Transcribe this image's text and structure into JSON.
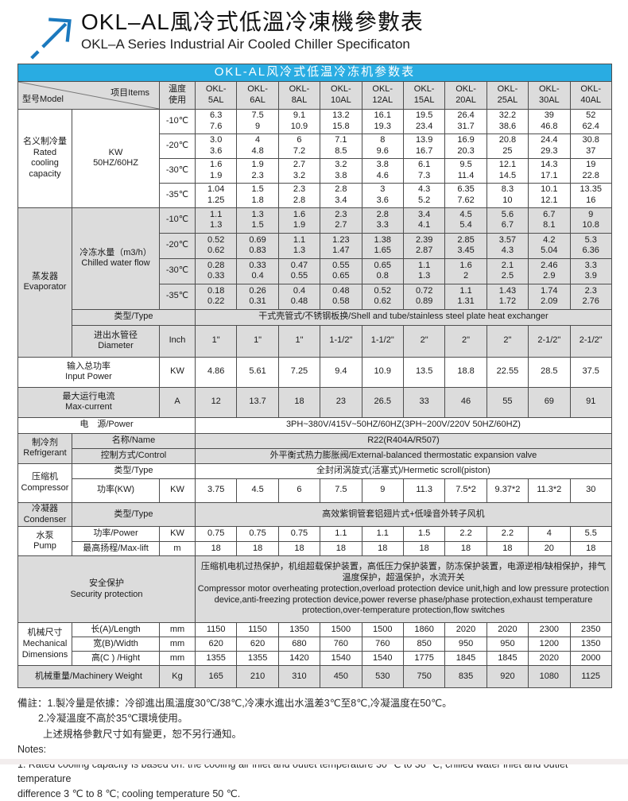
{
  "colors": {
    "accent_cyan": "#29ACE2",
    "logo_blue": "#1B79BE",
    "cell_gray": "#DCDCDC"
  },
  "page": {
    "title_zh": "OKL–AL風冷式低溫冷凍機參數表",
    "title_en": "OKL–A Series Industrial Air Cooled Chiller Specificaton"
  },
  "table": {
    "title": "OKL-AL风冷式低温冷冻机参数表",
    "header": {
      "model_label": "型号Model",
      "items_label": "项目Items",
      "temp_line1": "温度",
      "temp_line2": "使用",
      "models": [
        [
          "OKL-",
          "5AL"
        ],
        [
          "OKL-",
          "6AL"
        ],
        [
          "OKL-",
          "8AL"
        ],
        [
          "OKL-",
          "10AL"
        ],
        [
          "OKL-",
          "12AL"
        ],
        [
          "OKL-",
          "15AL"
        ],
        [
          "OKL-",
          "20AL"
        ],
        [
          "OKL-",
          "25AL"
        ],
        [
          "OKL-",
          "30AL"
        ],
        [
          "OKL-",
          "40AL"
        ]
      ]
    },
    "cooling": {
      "label_zh": "名义制冷量",
      "label_en": "Rated cooling capacity",
      "unit_line1": "KW",
      "unit_line2": "50HZ/60HZ",
      "rows": [
        {
          "temp": "-10℃",
          "values": [
            [
              "6.3",
              "7.6"
            ],
            [
              "7.5",
              "9"
            ],
            [
              "9.1",
              "10.9"
            ],
            [
              "13.2",
              "15.8"
            ],
            [
              "16.1",
              "19.3"
            ],
            [
              "19.5",
              "23.4"
            ],
            [
              "26.4",
              "31.7"
            ],
            [
              "32.2",
              "38.6"
            ],
            [
              "39",
              "46.8"
            ],
            [
              "52",
              "62.4"
            ]
          ]
        },
        {
          "temp": "-20℃",
          "values": [
            [
              "3.0",
              "3.6"
            ],
            [
              "4",
              "4.8"
            ],
            [
              "6",
              "7.2"
            ],
            [
              "7.1",
              "8.5"
            ],
            [
              "8",
              "9.6"
            ],
            [
              "13.9",
              "16.7"
            ],
            [
              "16.9",
              "20.3"
            ],
            [
              "20.8",
              "25"
            ],
            [
              "24.4",
              "29.3"
            ],
            [
              "30.8",
              "37"
            ]
          ]
        },
        {
          "temp": "-30℃",
          "values": [
            [
              "1.6",
              "1.9"
            ],
            [
              "1.9",
              "2.3"
            ],
            [
              "2.7",
              "3.2"
            ],
            [
              "3.2",
              "3.8"
            ],
            [
              "3.8",
              "4.6"
            ],
            [
              "6.1",
              "7.3"
            ],
            [
              "9.5",
              "11.4"
            ],
            [
              "12.1",
              "14.5"
            ],
            [
              "14.3",
              "17.1"
            ],
            [
              "19",
              "22.8"
            ]
          ]
        },
        {
          "temp": "-35℃",
          "values": [
            [
              "1.04",
              "1.25"
            ],
            [
              "1.5",
              "1.8"
            ],
            [
              "2.3",
              "2.8"
            ],
            [
              "2.8",
              "3.4"
            ],
            [
              "3",
              "3.6"
            ],
            [
              "4.3",
              "5.2"
            ],
            [
              "6.35",
              "7.62"
            ],
            [
              "8.3",
              "10"
            ],
            [
              "10.1",
              "12.1"
            ],
            [
              "13.35",
              "16"
            ]
          ]
        }
      ]
    },
    "evaporator": {
      "label_zh": "蒸发器",
      "label_en": "Evaporator",
      "flow_label_zh": "冷冻水量（m3/h）",
      "flow_label_en": "Chilled water flow",
      "flow_rows": [
        {
          "temp": "-10℃",
          "values": [
            [
              "1.1",
              "1.3"
            ],
            [
              "1.3",
              "1.5"
            ],
            [
              "1.6",
              "1.9"
            ],
            [
              "2.3",
              "2.7"
            ],
            [
              "2.8",
              "3.3"
            ],
            [
              "3.4",
              "4.1"
            ],
            [
              "4.5",
              "5.4"
            ],
            [
              "5.6",
              "6.7"
            ],
            [
              "6.7",
              "8.1"
            ],
            [
              "9",
              "10.8"
            ]
          ]
        },
        {
          "temp": "-20℃",
          "values": [
            [
              "0.52",
              "0.62"
            ],
            [
              "0.69",
              "0.83"
            ],
            [
              "1.1",
              "1.3"
            ],
            [
              "1.23",
              "1.47"
            ],
            [
              "1.38",
              "1.65"
            ],
            [
              "2.39",
              "2.87"
            ],
            [
              "2.85",
              "3.45"
            ],
            [
              "3.57",
              "4.3"
            ],
            [
              "4.2",
              "5.04"
            ],
            [
              "5.3",
              "6.36"
            ]
          ]
        },
        {
          "temp": "-30℃",
          "values": [
            [
              "0.28",
              "0.33"
            ],
            [
              "0.33",
              "0.4"
            ],
            [
              "0.47",
              "0.55"
            ],
            [
              "0.55",
              "0.65"
            ],
            [
              "0.65",
              "0.8"
            ],
            [
              "1.1",
              "1.3"
            ],
            [
              "1.6",
              "2"
            ],
            [
              "2.1",
              "2.5"
            ],
            [
              "2.46",
              "2.9"
            ],
            [
              "3.3",
              "3.9"
            ]
          ]
        },
        {
          "temp": "-35℃",
          "values": [
            [
              "0.18",
              "0.22"
            ],
            [
              "0.26",
              "0.31"
            ],
            [
              "0.4",
              "0.48"
            ],
            [
              "0.48",
              "0.58"
            ],
            [
              "0.52",
              "0.62"
            ],
            [
              "0.72",
              "0.89"
            ],
            [
              "1.1",
              "1.31"
            ],
            [
              "1.43",
              "1.72"
            ],
            [
              "1.74",
              "2.09"
            ],
            [
              "2.3",
              "2.76"
            ]
          ]
        }
      ],
      "type_label": "类型/Type",
      "type_value": "干式壳管式/不锈钢板换/Shell and tube/stainless steel plate heat exchanger",
      "diameter": {
        "label_zh": "进出水管径",
        "label_en": "Diameter",
        "unit": "Inch",
        "values": [
          "1\"",
          "1\"",
          "1\"",
          "1-1/2\"",
          "1-1/2\"",
          "2\"",
          "2\"",
          "2\"",
          "2-1/2\"",
          "2-1/2\""
        ]
      }
    },
    "input_power": {
      "label_zh": "输入总功率",
      "label_en": "Input Power",
      "unit": "KW",
      "values": [
        "4.86",
        "5.61",
        "7.25",
        "9.4",
        "10.9",
        "13.5",
        "18.8",
        "22.55",
        "28.5",
        "37.5"
      ]
    },
    "max_current": {
      "label_zh": "最大运行电流",
      "label_en": "Max-current",
      "unit": "A",
      "values": [
        "12",
        "13.7",
        "18",
        "23",
        "26.5",
        "33",
        "46",
        "55",
        "69",
        "91"
      ]
    },
    "power": {
      "label": "电　源/Power",
      "value": "3PH~380V/415V~50HZ/60HZ(3PH~200V/220V  50HZ/60HZ)"
    },
    "refrigerant": {
      "label_zh": "制冷剂",
      "label_en": "Refrigerant",
      "name_label": "名称/Name",
      "name_value": "R22(R404A/R507)",
      "control_label": "控制方式/Control",
      "control_value": "外平衡式热力膨胀阀/External-balanced thermostatic expansion valve"
    },
    "compressor": {
      "label_zh": "压缩机",
      "label_en": "Compressor",
      "type_label": "类型/Type",
      "type_value": "全封闭涡旋式(活塞式)/Hermetic scroll(piston)",
      "power_label": "功率(KW)",
      "power_unit": "KW",
      "power_values": [
        "3.75",
        "4.5",
        "6",
        "7.5",
        "9",
        "11.3",
        "7.5*2",
        "9.37*2",
        "11.3*2",
        "30"
      ]
    },
    "condenser": {
      "label_zh": "冷凝器",
      "label_en": "Condenser",
      "type_label": "类型/Type",
      "type_value": "高效紫铜管套铝翅片式+低噪音外转子风机"
    },
    "pump": {
      "label_zh": "水泵",
      "label_en": "Pump",
      "power_label": "功率/Power",
      "power_unit": "KW",
      "power_values": [
        "0.75",
        "0.75",
        "0.75",
        "1.1",
        "1.1",
        "1.5",
        "2.2",
        "2.2",
        "4",
        "5.5"
      ],
      "lift_label": "最高扬程/Max-lift",
      "lift_unit": "m",
      "lift_values": [
        "18",
        "18",
        "18",
        "18",
        "18",
        "18",
        "18",
        "18",
        "20",
        "18"
      ]
    },
    "security": {
      "label_zh": "安全保护",
      "label_en": "Security protection",
      "text_zh": "压缩机电机过热保护，机组超载保护装置，高低压力保护装置，防冻保护装置，电源逆相/缺相保护，排气温度保护，超温保护，水流开关",
      "text_en": " Compressor motor overheating protection,overload protection device unit,high and low pressure protection device,anti-freezing protection device,power reverse phase/phase protection,exhaust temperature protection,over-temperature protection,flow switches"
    },
    "mechanical": {
      "label_zh": "机械尺寸",
      "label_en": "Mechanical Dimensions",
      "rows": [
        {
          "label": "长(A)/Length",
          "unit": "mm",
          "values": [
            "1150",
            "1150",
            "1350",
            "1500",
            "1500",
            "1860",
            "2020",
            "2020",
            "2300",
            "2350"
          ]
        },
        {
          "label": "宽(B)/Width",
          "unit": "mm",
          "values": [
            "620",
            "620",
            "680",
            "760",
            "760",
            "850",
            "950",
            "950",
            "1200",
            "1350"
          ]
        },
        {
          "label": "高(C ) /Hight",
          "unit": "mm",
          "values": [
            "1355",
            "1355",
            "1420",
            "1540",
            "1540",
            "1775",
            "1845",
            "1845",
            "2020",
            "2000"
          ]
        }
      ]
    },
    "weight": {
      "label": "机械重量/Machinery Weight",
      "unit": "Kg",
      "values": [
        "165",
        "210",
        "310",
        "450",
        "530",
        "750",
        "835",
        "920",
        "1080",
        "1125"
      ]
    }
  },
  "notes": {
    "line1": "備註：1.製冷量是依據：冷卻進出風溫度30℃/38℃,冷凍水進出水溫差3℃至8℃,冷凝溫度在50℃。",
    "line2": "2.冷凝溫度不高於35℃環境使用。",
    "line3": "上述規格參數尺寸如有變更，恕不另行通知。",
    "line4": "Notes:",
    "line5": "1. Rated cooling capacity is based on: the cooling air inlet and outlet temperature 30 ℃ to 38 ℃, chilled water inlet and outlet temperature",
    "line6": "difference 3 ℃ to 8 ℃; cooling temperature 50 ℃."
  }
}
